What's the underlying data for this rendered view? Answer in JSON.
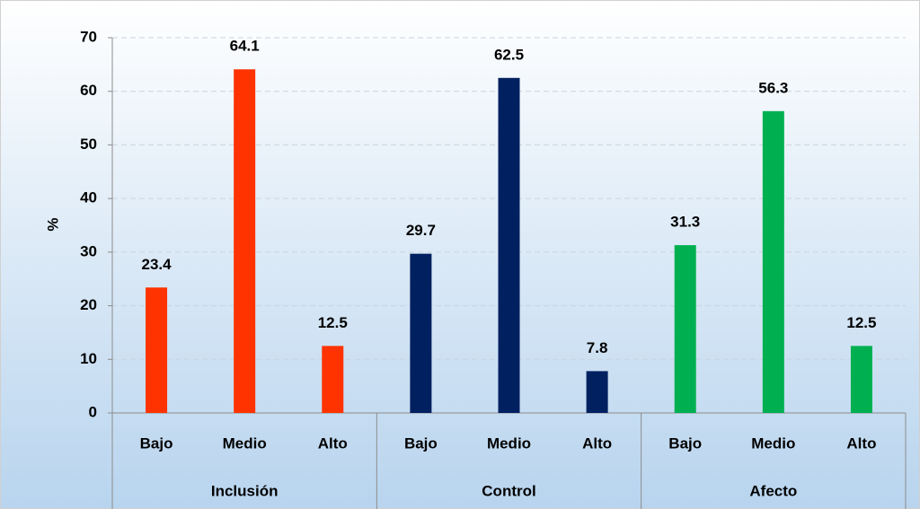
{
  "chart_data": {
    "type": "bar",
    "y_label": "%",
    "categories": [
      "Bajo",
      "Medio",
      "Alto"
    ],
    "series": [
      {
        "name": "Inclusión",
        "color": "#ff3300",
        "values": [
          23.4,
          64.1,
          12.5
        ]
      },
      {
        "name": "Control",
        "color": "#002060",
        "values": [
          29.7,
          62.5,
          7.8
        ]
      },
      {
        "name": "Afecto",
        "color": "#00b050",
        "values": [
          31.3,
          56.3,
          12.5
        ]
      }
    ],
    "ylim": [
      0,
      70
    ],
    "yticks": [
      0,
      10,
      20,
      30,
      40,
      50,
      60,
      70
    ],
    "grid": true
  }
}
